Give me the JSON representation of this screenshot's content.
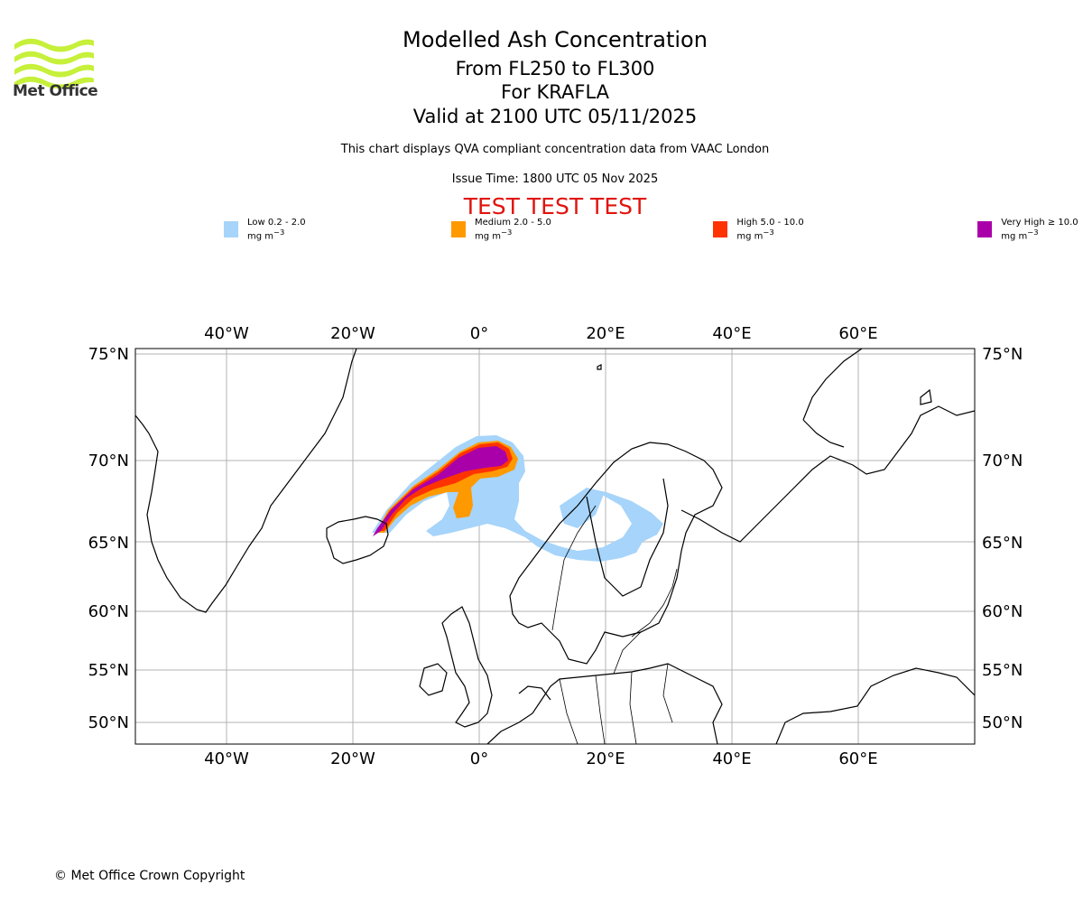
{
  "logo": {
    "text": "Met Office",
    "icon": "met-office-wave-logo"
  },
  "header": {
    "title": "Modelled Ash Concentration",
    "flight_levels": "From FL250 to FL300",
    "volcano": "For KRAFLA",
    "valid_time": "Valid at 2100 UTC 05/11/2025",
    "compliance_note": "This chart displays QVA compliant concentration data from VAAC London",
    "issue_time": "Issue Time: 1800 UTC 05 Nov 2025",
    "test_banner": "TEST TEST TEST"
  },
  "legend": [
    {
      "label": "Low 0.2 - 2.0 mg m",
      "exp": "−3",
      "color": "#a6d4fa"
    },
    {
      "label": "Medium 2.0 - 5.0 mg m",
      "exp": "−3",
      "color": "#ff9900"
    },
    {
      "label": "High 5.0 - 10.0 mg m",
      "exp": "−3",
      "color": "#ff3300"
    },
    {
      "label": "Very High  ≥  10.0 mg m",
      "exp": "−3",
      "color": "#aa00aa"
    }
  ],
  "map": {
    "lon_labels": [
      "40°W",
      "20°W",
      "0°",
      "20°E",
      "40°E",
      "60°E"
    ],
    "lat_labels": [
      "75°N",
      "70°N",
      "65°N",
      "60°N",
      "55°N",
      "50°N"
    ]
  },
  "footer": {
    "copyright": "© Met Office Crown Copyright"
  }
}
